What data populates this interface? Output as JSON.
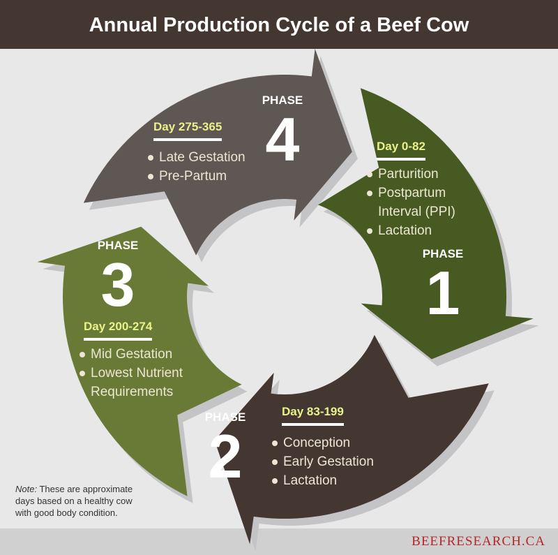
{
  "title": "Annual Production Cycle of a Beef Cow",
  "phases": [
    {
      "label": "PHASE",
      "number": "1",
      "days": "Day 0-82",
      "items": [
        "Parturition",
        "Postpartum Interval (PPI)",
        "Lactation"
      ],
      "color": "#465a22"
    },
    {
      "label": "PHASE",
      "number": "2",
      "days": "Day 83-199",
      "items": [
        "Conception",
        "Early Gestation",
        "Lactation"
      ],
      "color": "#443630"
    },
    {
      "label": "PHASE",
      "number": "3",
      "days": "Day 200-274",
      "items": [
        "Mid Gestation",
        "Lowest Nutrient Requirements"
      ],
      "color": "#687a35"
    },
    {
      "label": "PHASE",
      "number": "4",
      "days": "Day 275-365",
      "items": [
        "Late Gestation",
        "Pre-Partum"
      ],
      "color": "#5f5753"
    }
  ],
  "note": {
    "prefix": "Note:",
    "text": " These are approximate days based on a healthy cow with good body condition."
  },
  "brand": "BEEFRESEARCH.CA"
}
